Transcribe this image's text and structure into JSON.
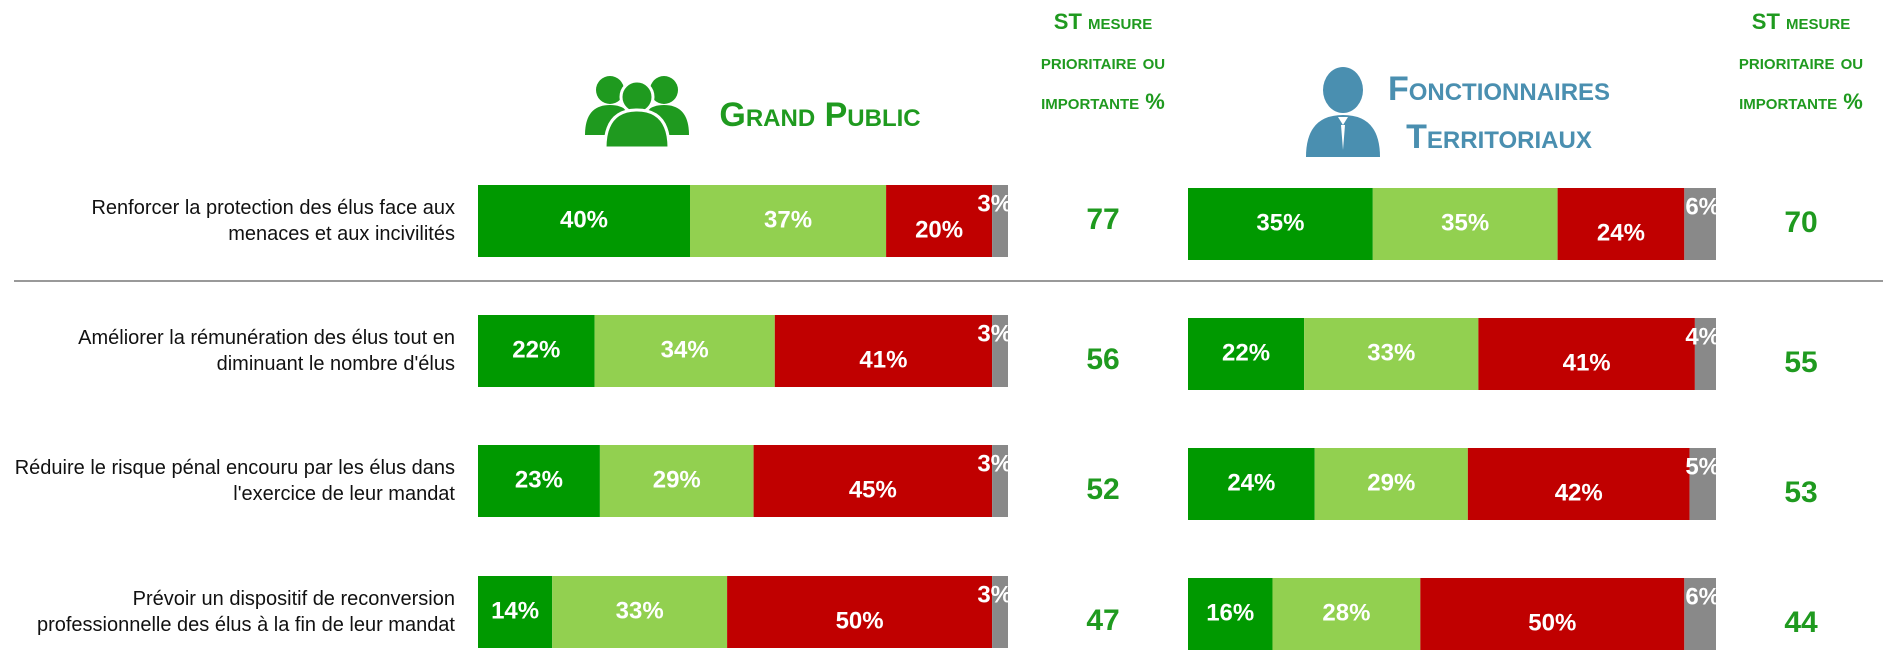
{
  "chart_data": [
    {
      "type": "bar",
      "orientation": "horizontal",
      "stacked": true,
      "title": "Grand Public",
      "title_color": "#1f9a1f",
      "categories": [
        "Renforcer la protection des élus face aux menaces et aux incivilités",
        "Améliorer la rémunération des élus tout en diminuant le nombre d'élus",
        "Réduire le risque pénal encouru par les élus dans l'exercice de leur mandat",
        "Prévoir un dispositif de reconversion professionnelle des élus à la fin de leur mandat"
      ],
      "xlim": [
        0,
        100
      ],
      "series": [
        {
          "color": "#009900",
          "values": [
            40,
            22,
            23,
            14
          ],
          "value_labels": [
            "40%",
            "22%",
            "23%",
            "14%"
          ]
        },
        {
          "color": "#92d050",
          "values": [
            37,
            34,
            29,
            33
          ],
          "value_labels": [
            "37%",
            "34%",
            "29%",
            "33%"
          ]
        },
        {
          "color": "#c00000",
          "values": [
            20,
            41,
            45,
            50
          ],
          "value_labels": [
            "20%",
            "41%",
            "45%",
            "50%"
          ]
        },
        {
          "color": "#898989",
          "values": [
            3,
            3,
            3,
            3
          ],
          "value_labels": [
            "3%",
            "3%",
            "3%",
            "3%"
          ]
        }
      ],
      "totals": {
        "title": "ST mesure prioritaire ou importante %",
        "color": "#1f9a1f",
        "values": [
          77,
          56,
          52,
          47
        ]
      }
    },
    {
      "type": "bar",
      "orientation": "horizontal",
      "stacked": true,
      "title": "Fonctionnaires Territoriaux",
      "title_color": "#4a8fb0",
      "xlim": [
        0,
        100
      ],
      "series": [
        {
          "color": "#009900",
          "values": [
            35,
            22,
            24,
            16
          ],
          "value_labels": [
            "35%",
            "22%",
            "24%",
            "16%"
          ]
        },
        {
          "color": "#92d050",
          "values": [
            35,
            33,
            29,
            28
          ],
          "value_labels": [
            "35%",
            "33%",
            "29%",
            "28%"
          ]
        },
        {
          "color": "#c00000",
          "values": [
            24,
            41,
            42,
            50
          ],
          "value_labels": [
            "24%",
            "41%",
            "42%",
            "50%"
          ]
        },
        {
          "color": "#898989",
          "values": [
            6,
            4,
            5,
            6
          ],
          "value_labels": [
            "6%",
            "4%",
            "5%",
            "6%"
          ]
        }
      ],
      "totals": {
        "title": "ST mesure prioritaire ou importante %",
        "color": "#1f9a1f",
        "values": [
          70,
          55,
          53,
          44
        ]
      }
    }
  ]
}
